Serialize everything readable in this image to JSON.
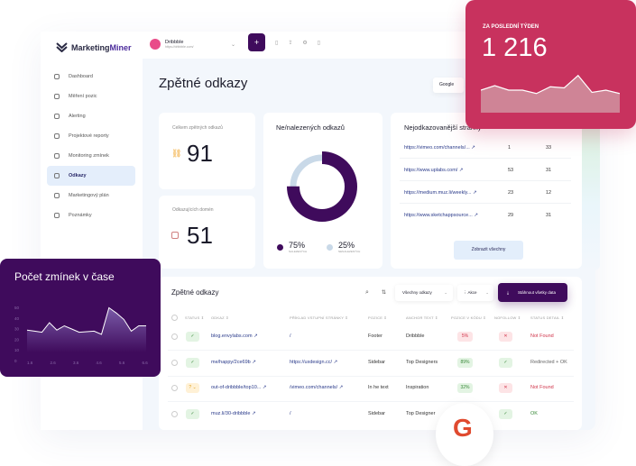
{
  "app": {
    "logo": {
      "name_a": "Marketing",
      "name_b": "Miner"
    }
  },
  "project": {
    "name": "Dribbble",
    "url": "https://dribbble.com/"
  },
  "toolbar": {
    "add_label": "+"
  },
  "sidebar": {
    "items": [
      {
        "label": "Dashboard",
        "icon": "dashboard-icon"
      },
      {
        "label": "Měření pozic",
        "icon": "chart-icon"
      },
      {
        "label": "Alerting",
        "icon": "bell-icon"
      },
      {
        "label": "Projektové reporty",
        "icon": "report-icon"
      },
      {
        "label": "Monitoring zmínek",
        "icon": "monitor-icon"
      },
      {
        "label": "Odkazy",
        "icon": "link-icon",
        "active": true
      },
      {
        "label": "Marketingový plán",
        "icon": "calendar-icon"
      },
      {
        "label": "Poznámky",
        "icon": "note-icon"
      }
    ]
  },
  "page": {
    "title": "Zpětné odkazy",
    "google_button": "Google"
  },
  "stats": {
    "total_label": "Celkem zpětných odkazů",
    "total": "91",
    "domains_label": "Odkazujících domén",
    "domains": "51"
  },
  "donut": {
    "title": "Ne/nalezených odkazů",
    "found_pct": 75,
    "found_label": "75%",
    "found_sub": "NALEZENÝCH",
    "notfound_label": "25%",
    "notfound_sub": "NENALEZENÝCH",
    "colors": {
      "found": "#3f0b5c",
      "notfound": "#c9d9e8"
    }
  },
  "top_pages": {
    "title": "Nejodkazovanější stránky",
    "button": "Zobrazit všechny",
    "rows": [
      {
        "url": "https://vimeo.com/channels/...",
        "a": "1",
        "b": "33"
      },
      {
        "url": "https://www.uplabs.com/",
        "a": "53",
        "b": "31"
      },
      {
        "url": "https://medium.muz.li/weekly...",
        "a": "23",
        "b": "12"
      },
      {
        "url": "https://www.sketchappsource...",
        "a": "29",
        "b": "31"
      }
    ]
  },
  "weekly": {
    "label": "ZA POSLEDNÍ TÝDEN",
    "value": "1 216",
    "color": "#c8325e",
    "series": [
      20,
      24,
      20,
      20,
      17,
      23,
      22,
      33,
      18,
      20,
      17
    ]
  },
  "mentions": {
    "title": "Počet zmínek v čase",
    "y_ticks": [
      "50",
      "40",
      "30",
      "20",
      "10",
      "0"
    ],
    "x_ticks": [
      "1.6",
      "2.6",
      "3.6",
      "4.6",
      "5.6",
      "6.6"
    ],
    "series": [
      21,
      20,
      19,
      28,
      21,
      25,
      22,
      19,
      19.5,
      20,
      17,
      42,
      37,
      31,
      20,
      25,
      25
    ],
    "ylim": [
      0,
      50
    ],
    "color": "#3f0b5c"
  },
  "backlinks": {
    "title": "Zpětné odkazy",
    "filter": "Všechny odkazy",
    "actions": "Akce",
    "download": "Stáhnout všetky data",
    "columns": [
      "STATUS",
      "ODKAZ",
      "PŘÍKLAD VSTUPNÍ STRÁNKY",
      "POZICE",
      "ANCHOR TEXT",
      "POZICE V KÓDU",
      "NOFOLLOW",
      "STATUS DETAIL"
    ],
    "rows": [
      {
        "status": "✓",
        "status_type": "ok",
        "link": "blog.envylabs.com",
        "example": "/",
        "position": "Footer",
        "anchor": "Dribbble",
        "code_pos": "5%",
        "code_type": "bad",
        "nofollow": "✕",
        "nofollow_type": "bad",
        "detail": "Not Found",
        "detail_type": "bad"
      },
      {
        "status": "✓",
        "status_type": "ok",
        "link": "me/happy/2ce69b",
        "example": "https://uxdesign.cc/",
        "position": "Sidebar",
        "anchor": "Top Designers",
        "code_pos": "89%",
        "code_type": "ok",
        "nofollow": "✓",
        "nofollow_type": "ok",
        "detail": "Redirected + OK",
        "detail_type": "redir"
      },
      {
        "status": "? ⌄",
        "status_type": "warn",
        "link": "out-of-dribbble/top10...",
        "example": "/vimeo.com/channels/",
        "position": "In he text",
        "anchor": "Inspiration",
        "code_pos": "32%",
        "code_type": "ok",
        "nofollow": "✕",
        "nofollow_type": "bad",
        "detail": "Not Found",
        "detail_type": "bad"
      },
      {
        "status": "✓",
        "status_type": "ok",
        "link": "muz.li/30-dribbble",
        "example": "/",
        "position": "Sidebar",
        "anchor": "Top Designer",
        "code_pos": "",
        "code_type": "",
        "nofollow": "✓",
        "nofollow_type": "ok",
        "detail": "OK",
        "detail_type": "okd"
      }
    ]
  }
}
